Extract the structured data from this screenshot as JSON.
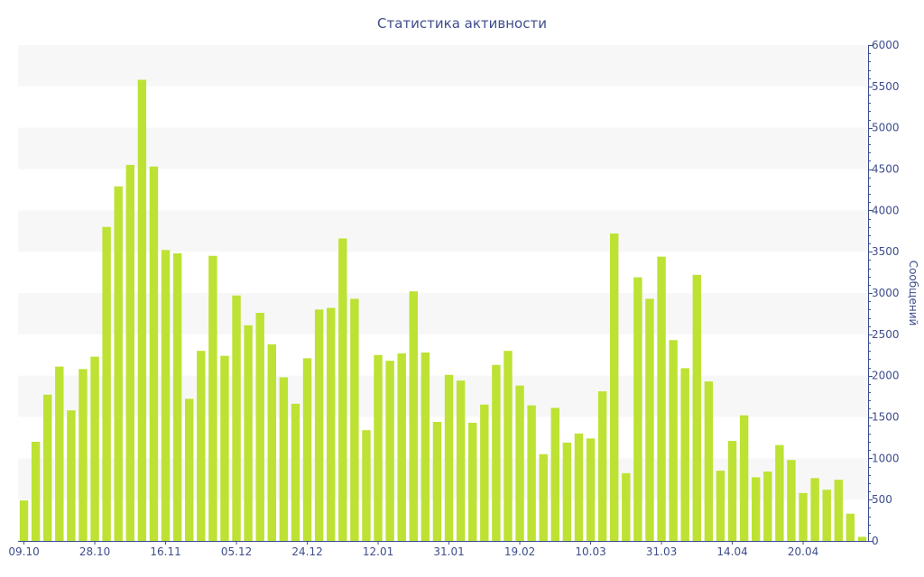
{
  "chart_data": {
    "type": "bar",
    "title": "Статистика активности",
    "ylabel": "Сообщений",
    "xlabel": "",
    "ylim": [
      0,
      6000
    ],
    "y_ticks": [
      0,
      500,
      1000,
      1500,
      2000,
      2500,
      3000,
      3500,
      4000,
      4500,
      5000,
      5500,
      6000
    ],
    "y_axis_side": "right",
    "bar_color": "#bde234",
    "band_color": "#f7f7f7",
    "x_tick_labels": [
      {
        "label": "09.10",
        "index": 0
      },
      {
        "label": "28.10",
        "index": 6
      },
      {
        "label": "16.11",
        "index": 12
      },
      {
        "label": "05.12",
        "index": 18
      },
      {
        "label": "24.12",
        "index": 24
      },
      {
        "label": "12.01",
        "index": 30
      },
      {
        "label": "31.01",
        "index": 36
      },
      {
        "label": "19.02",
        "index": 42
      },
      {
        "label": "10.03",
        "index": 48
      },
      {
        "label": "31.03",
        "index": 54
      },
      {
        "label": "14.04",
        "index": 60
      },
      {
        "label": "20.04",
        "index": 66
      }
    ],
    "values": [
      490,
      1200,
      1770,
      2110,
      1580,
      2080,
      2230,
      3800,
      4290,
      4550,
      5580,
      4530,
      3520,
      3480,
      1720,
      2300,
      3450,
      2240,
      2970,
      2610,
      2760,
      2380,
      1980,
      1660,
      2210,
      2800,
      2820,
      3660,
      2930,
      1340,
      2250,
      2180,
      2270,
      3020,
      2280,
      1440,
      2010,
      1940,
      1430,
      1650,
      2130,
      2300,
      1880,
      1640,
      1050,
      1610,
      1190,
      1300,
      1240,
      1810,
      3720,
      820,
      3190,
      2930,
      3440,
      2430,
      2090,
      3220,
      1930,
      850,
      1210,
      1520,
      770,
      840,
      1160,
      980,
      580,
      760,
      620,
      740,
      330,
      50
    ]
  }
}
